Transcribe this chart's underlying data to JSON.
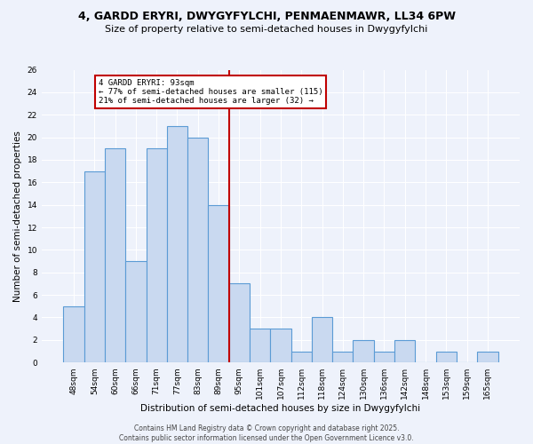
{
  "title1": "4, GARDD ERYRI, DWYGYFYLCHI, PENMAENMAWR, LL34 6PW",
  "title2": "Size of property relative to semi-detached houses in Dwygyfylchi",
  "xlabel": "Distribution of semi-detached houses by size in Dwygyfylchi",
  "ylabel": "Number of semi-detached properties",
  "categories": [
    "48sqm",
    "54sqm",
    "60sqm",
    "66sqm",
    "71sqm",
    "77sqm",
    "83sqm",
    "89sqm",
    "95sqm",
    "101sqm",
    "107sqm",
    "112sqm",
    "118sqm",
    "124sqm",
    "130sqm",
    "136sqm",
    "142sqm",
    "148sqm",
    "153sqm",
    "159sqm",
    "165sqm"
  ],
  "values": [
    5,
    17,
    19,
    9,
    19,
    21,
    20,
    14,
    7,
    3,
    3,
    1,
    4,
    1,
    2,
    1,
    2,
    0,
    1,
    0,
    1
  ],
  "bar_color": "#c9d9f0",
  "bar_edge_color": "#5b9bd5",
  "vline_index": 8,
  "vline_color": "#c00000",
  "annotation_title": "4 GARDD ERYRI: 93sqm",
  "annotation_line1": "← 77% of semi-detached houses are smaller (115)",
  "annotation_line2": "21% of semi-detached houses are larger (32) →",
  "annotation_box_color": "#c00000",
  "ylim": [
    0,
    26
  ],
  "yticks": [
    0,
    2,
    4,
    6,
    8,
    10,
    12,
    14,
    16,
    18,
    20,
    22,
    24,
    26
  ],
  "footer": "Contains HM Land Registry data © Crown copyright and database right 2025.\nContains public sector information licensed under the Open Government Licence v3.0.",
  "bg_color": "#eef2fb",
  "grid_color": "#ffffff",
  "title_fontsize": 9,
  "subtitle_fontsize": 8,
  "tick_fontsize": 6.5,
  "ylabel_fontsize": 7.5,
  "xlabel_fontsize": 7.5,
  "footer_fontsize": 5.5,
  "annot_fontsize": 6.5
}
